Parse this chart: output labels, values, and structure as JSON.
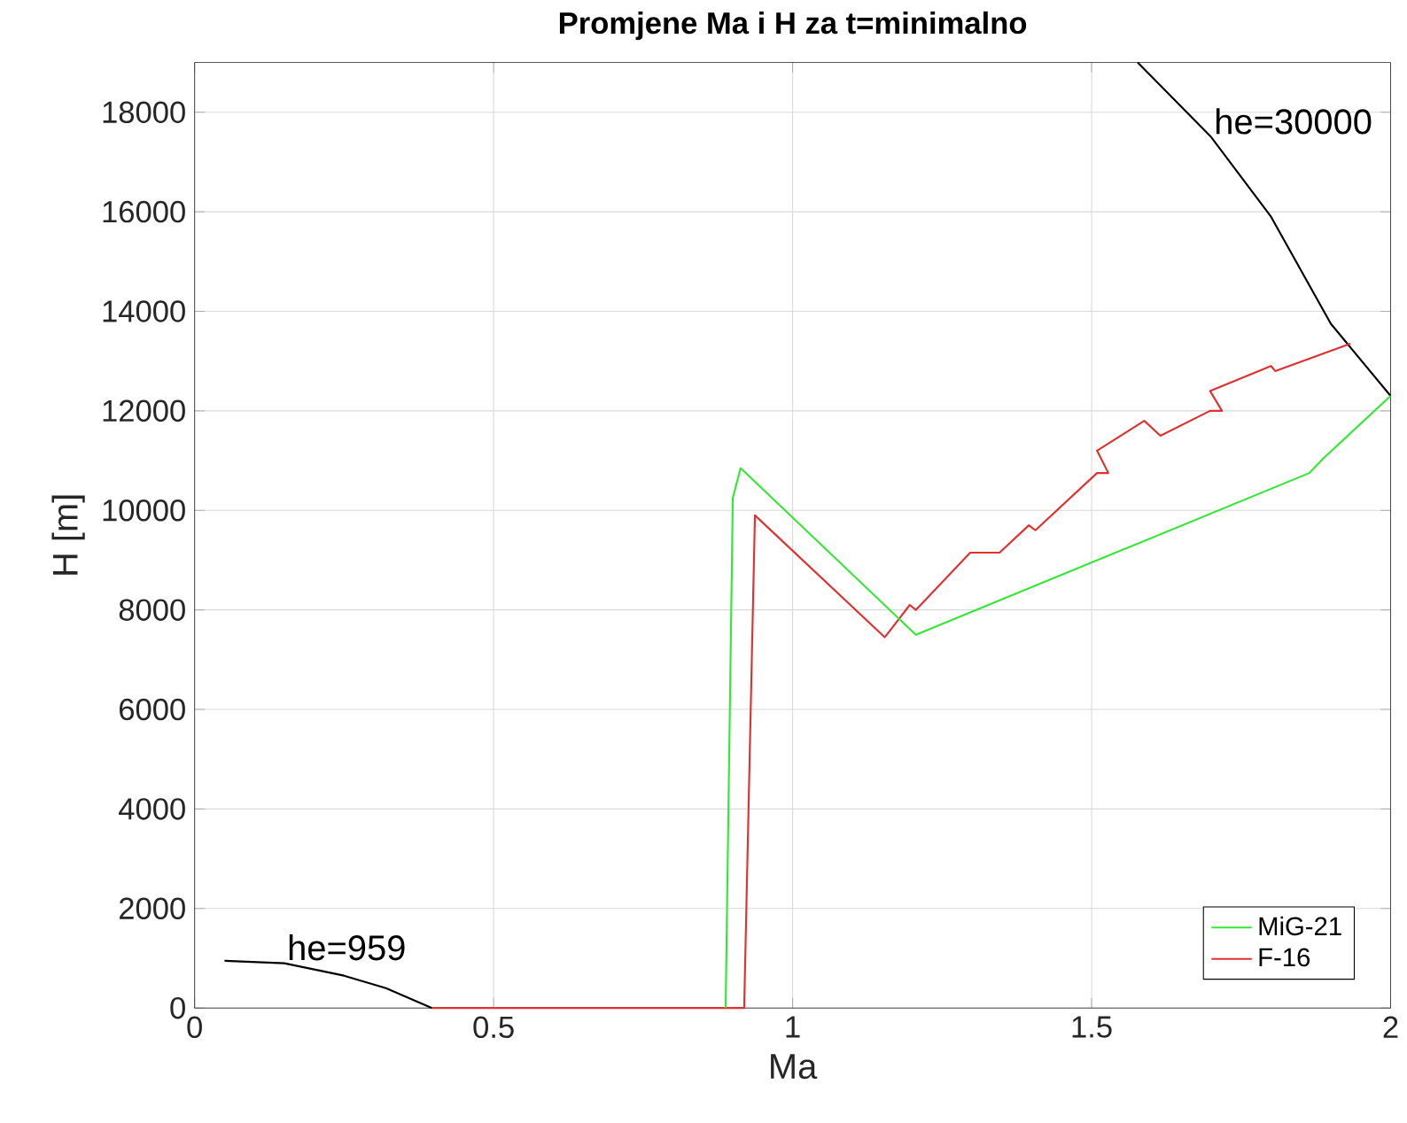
{
  "chart_data": {
    "type": "line",
    "title": "Promjene Ma i H za t=minimalno",
    "xlabel": "Ma",
    "ylabel": "H [m]",
    "xlim": [
      0,
      2
    ],
    "ylim": [
      0,
      19000
    ],
    "xticks": [
      0,
      0.5,
      1,
      1.5,
      2
    ],
    "yticks": [
      0,
      2000,
      4000,
      6000,
      8000,
      10000,
      12000,
      14000,
      16000,
      18000
    ],
    "grid": true,
    "legend": "bottom right",
    "line_style": "solid",
    "series": [
      {
        "name": "MiG-21",
        "color": "#33e833",
        "x": [
          0.888,
          0.9,
          0.913,
          1.206,
          1.864,
          1.888,
          2
        ],
        "values": [
          0,
          10250,
          10850,
          7500,
          10750,
          11050,
          12300
        ]
      },
      {
        "name": "F-16",
        "color": "#e03030",
        "x": [
          0.397,
          0.919,
          0.937,
          1.154,
          1.196,
          1.206,
          1.297,
          1.346,
          1.395,
          1.406,
          1.509,
          1.528,
          1.509,
          1.588,
          1.615,
          1.698,
          1.718,
          1.698,
          1.8,
          1.807,
          1.933
        ],
        "values": [
          0,
          0,
          9900,
          7450,
          8100,
          8000,
          9150,
          9150,
          9700,
          9600,
          10750,
          10750,
          11200,
          11800,
          11500,
          12000,
          12000,
          12400,
          12900,
          12800,
          13350
        ]
      },
      {
        "color": "#000000",
        "x": [
          0.05,
          0.15,
          0.25,
          0.32,
          0.397
        ],
        "values": [
          950,
          900,
          650,
          400,
          0
        ]
      },
      {
        "color": "#000000",
        "x": [
          1.577,
          1.7,
          1.8,
          1.9,
          2
        ],
        "values": [
          19000,
          17500,
          15900,
          13750,
          12300
        ]
      }
    ],
    "annotations": [
      "he=959",
      "he=30000"
    ]
  }
}
